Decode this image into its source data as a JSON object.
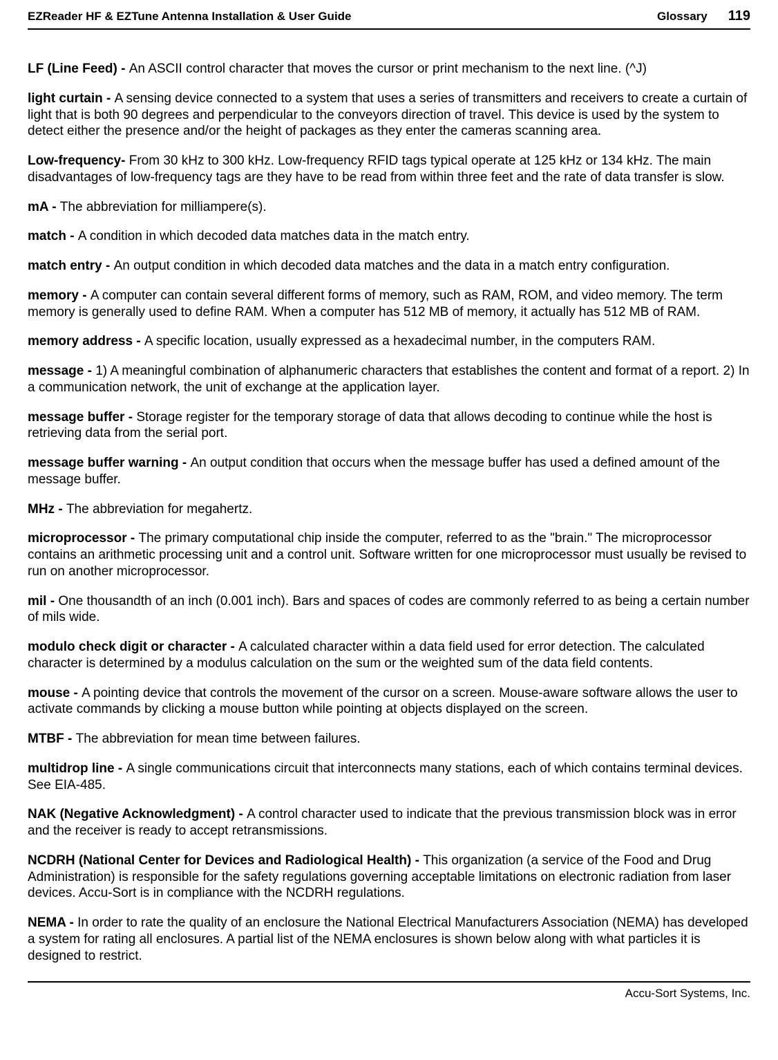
{
  "header": {
    "left": "EZReader HF & EZTune Antenna Installation & User Guide",
    "section": "Glossary",
    "page": "119"
  },
  "entries": [
    {
      "term": "LF (Line Feed) - ",
      "def": "An ASCII control character that moves the cursor or print mechanism to the next line. (^J)"
    },
    {
      "term": "light curtain - ",
      "def": "A sensing device connected to a system that uses a series of transmitters and receivers to create a curtain of light that is both 90 degrees and perpendicular to the conveyors direction of travel. This device is used by the system to detect either the presence and/or the height of packages as they enter the cameras scanning area."
    },
    {
      "term": "Low-frequency- ",
      "def": "From 30 kHz to 300 kHz. Low-frequency RFID tags typical operate at 125 kHz or 134 kHz. The main disadvantages of low-frequency tags are they have to be read from within three feet and the rate of data transfer is slow."
    },
    {
      "term": "mA - ",
      "def": "The abbreviation for milliampere(s)."
    },
    {
      "term": "match - ",
      "def": "A condition in which decoded data matches data in the match entry."
    },
    {
      "term": "match entry - ",
      "def": "An output condition in which decoded data matches and the data in a match entry configuration."
    },
    {
      "term": "memory - ",
      "def": "A computer can contain several different forms of memory, such as RAM, ROM, and video memory. The term memory is generally used to define RAM. When a computer has 512 MB of memory, it actually has 512 MB of RAM."
    },
    {
      "term": "memory address - ",
      "def": "A specific location, usually expressed as a hexadecimal number, in the computers RAM."
    },
    {
      "term": "message - ",
      "def": "1) A meaningful combination of alphanumeric characters that establishes the content and format of a report. 2) In a communication network, the unit of exchange at the application layer."
    },
    {
      "term": "message buffer - ",
      "def": "Storage register for the temporary storage of data that allows decoding to continue while the host is retrieving data from the serial port."
    },
    {
      "term": "message buffer warning - ",
      "def": "An output condition that occurs when the message buffer has used a defined amount of the message buffer."
    },
    {
      "term": "MHz - ",
      "def": "The abbreviation for megahertz."
    },
    {
      "term": "microprocessor - ",
      "def": "The primary computational chip inside the computer, referred to as the \"brain.\" The microprocessor contains an arithmetic processing unit and a control unit. Software written for one microprocessor must usually be revised to run on another microprocessor."
    },
    {
      "term": "mil - ",
      "def": "One thousandth of an inch (0.001 inch). Bars and spaces of codes are commonly referred to as being a certain number of mils wide."
    },
    {
      "term": "modulo check digit or character - ",
      "def": "A calculated character within a data field used for error detection. The calculated character is determined by a modulus calculation on the sum or the weighted sum of the data field contents."
    },
    {
      "term": "mouse - ",
      "def": "A pointing device that controls the movement of the cursor on a screen. Mouse-aware software allows the user to activate commands by clicking a mouse button while pointing at objects displayed on the screen."
    },
    {
      "term": "MTBF - ",
      "def": "The abbreviation for mean time between failures."
    },
    {
      "term": "multidrop line - ",
      "def": "A single communications circuit that interconnects many stations, each of which contains terminal devices. See EIA-485."
    },
    {
      "term": "NAK (Negative Acknowledgment) - ",
      "def": "A control character used to indicate that the previous transmission block was in error and the receiver is ready to accept retransmissions."
    },
    {
      "term": "NCDRH (National Center for Devices and Radiological Health) - ",
      "def": "This organization (a service of the Food and Drug Administration) is responsible for the safety regulations governing acceptable limitations on electronic radiation from laser devices. Accu-Sort is in compliance with the NCDRH regulations."
    },
    {
      "term": "NEMA - ",
      "def": "In order to rate the quality of an enclosure the National Electrical Manufacturers Association (NEMA) has developed a system for rating all enclosures. A partial list of the NEMA enclosures is shown below along with what particles it is designed to restrict."
    }
  ],
  "footer": {
    "company": "Accu-Sort Systems, Inc."
  }
}
